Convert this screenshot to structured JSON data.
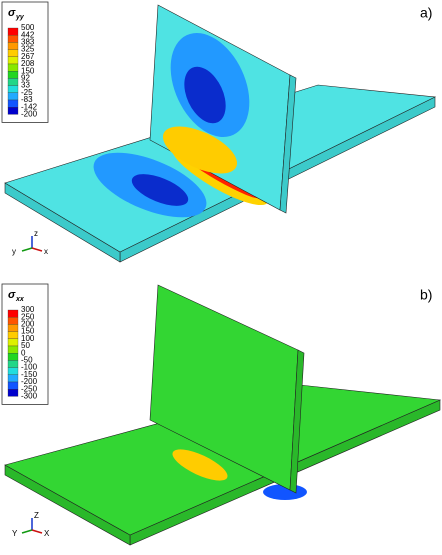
{
  "panels": [
    {
      "label": "a)",
      "legend": {
        "symbol": "σ",
        "subscript": "yy",
        "values": [
          500,
          442,
          383,
          325,
          267,
          208,
          150,
          92,
          33,
          -25,
          -83,
          -142,
          -200
        ]
      },
      "triad": {
        "z": "z",
        "y": "y",
        "x": "x"
      }
    },
    {
      "label": "b)",
      "legend": {
        "symbol": "σ",
        "subscript": "xx",
        "values": [
          300,
          250,
          200,
          150,
          100,
          50,
          0,
          -50,
          -100,
          -150,
          -200,
          -250,
          -300
        ]
      },
      "triad": {
        "z": "Z",
        "y": "Y",
        "x": "X"
      }
    }
  ],
  "colors": [
    "#ff0000",
    "#ff5500",
    "#ff9900",
    "#ffcc00",
    "#ddf000",
    "#88e800",
    "#22d622",
    "#22d688",
    "#22dddd",
    "#22aaff",
    "#1155ff",
    "#0000cc"
  ]
}
